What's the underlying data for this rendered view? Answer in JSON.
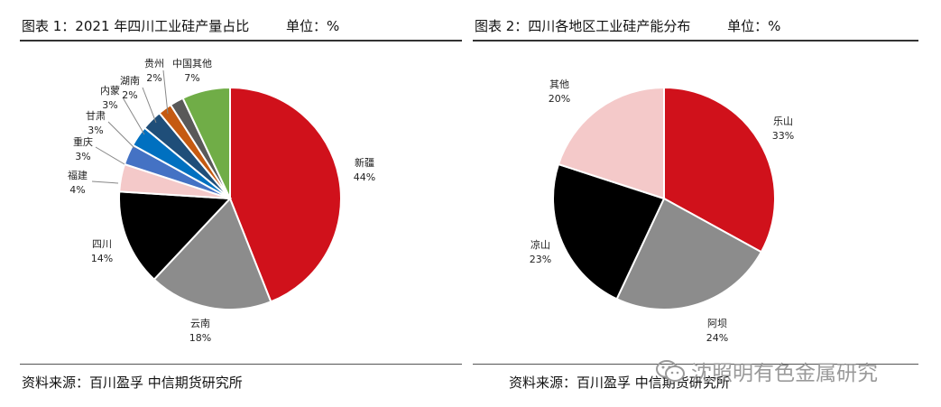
{
  "charts": [
    {
      "title_label": "图表 1：2021 年四川工业硅产量占比",
      "unit_label": "单位：%",
      "source_label": "资料来源：百川盈孚  中信期货研究所"
    },
    {
      "title_label": "图表 2：四川各地区工业硅产能分布",
      "unit_label": "单位：%",
      "source_label": "资料来源：百川盈孚  中信期货研究所"
    }
  ],
  "chart_data": [
    {
      "type": "pie",
      "title": "图表 1：2021 年四川工业硅产量占比",
      "unit": "%",
      "start_angle_deg": 0,
      "direction": "clockwise",
      "slices": [
        {
          "name": "新疆",
          "value": 44,
          "label": "44%",
          "color": "#d0111b"
        },
        {
          "name": "云南",
          "value": 18,
          "label": "18%",
          "color": "#8c8c8c"
        },
        {
          "name": "四川",
          "value": 14,
          "label": "14%",
          "color": "#000000"
        },
        {
          "name": "福建",
          "value": 4,
          "label": "4%",
          "color": "#f4c9c9"
        },
        {
          "name": "重庆",
          "value": 3,
          "label": "3%",
          "color": "#4472c4"
        },
        {
          "name": "甘肃",
          "value": 3,
          "label": "3%",
          "color": "#0070c0"
        },
        {
          "name": "内蒙",
          "value": 3,
          "label": "3%",
          "color": "#1f4e79"
        },
        {
          "name": "湖南",
          "value": 2,
          "label": "2%",
          "color": "#c55a11"
        },
        {
          "name": "贵州",
          "value": 2,
          "label": "2%",
          "color": "#595959"
        },
        {
          "name": "中国其他",
          "value": 7,
          "label": "7%",
          "color": "#70ad47"
        }
      ]
    },
    {
      "type": "pie",
      "title": "图表 2：四川各地区工业硅产能分布",
      "unit": "%",
      "start_angle_deg": 0,
      "direction": "clockwise",
      "slices": [
        {
          "name": "乐山",
          "value": 33,
          "label": "33%",
          "color": "#d0111b"
        },
        {
          "name": "阿坝",
          "value": 24,
          "label": "24%",
          "color": "#8c8c8c"
        },
        {
          "name": "凉山",
          "value": 23,
          "label": "23%",
          "color": "#000000"
        },
        {
          "name": "其他",
          "value": 20,
          "label": "20%",
          "color": "#f4c9c9"
        }
      ]
    }
  ],
  "watermark": {
    "text": "沈照明有色金属研究",
    "icon": "wechat-icon"
  }
}
